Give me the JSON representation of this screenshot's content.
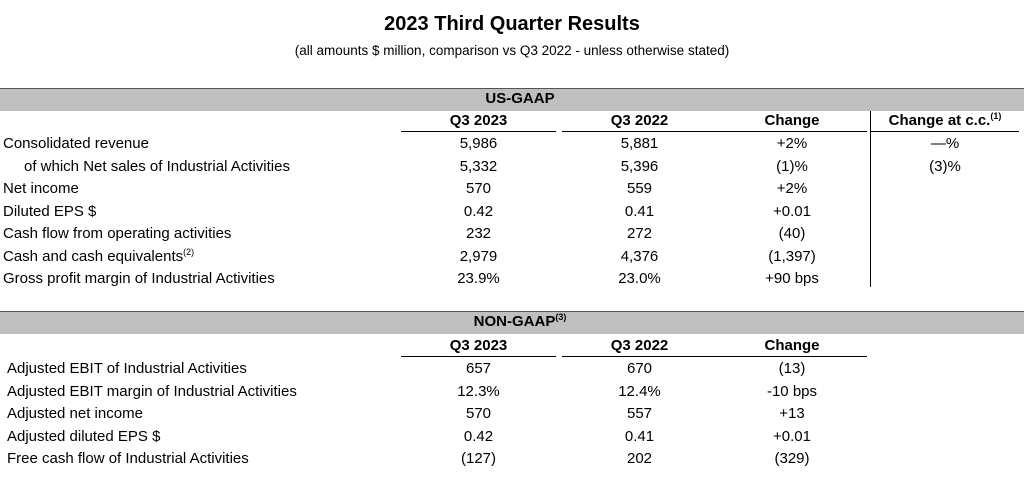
{
  "header": {
    "title": "2023 Third Quarter Results",
    "subtitle": "(all amounts $ million, comparison vs Q3 2022 - unless otherwise stated)"
  },
  "us_gaap": {
    "section_label": "US-GAAP",
    "columns": [
      "Q3 2023",
      "Q3 2022",
      "Change",
      "Change at c.c."
    ],
    "columns_cc_note": "(1)",
    "rows": [
      {
        "label": "Consolidated revenue",
        "note": "",
        "q3_2023": "5,986",
        "q3_2022": "5,881",
        "change": "+2%",
        "change_cc": "—%"
      },
      {
        "label": "of which Net sales of Industrial Activities",
        "note": "",
        "q3_2023": "5,332",
        "q3_2022": "5,396",
        "change": "(1)%",
        "change_cc": "(3)%"
      },
      {
        "label": "Net income",
        "note": "",
        "q3_2023": "570",
        "q3_2022": "559",
        "change": "+2%",
        "change_cc": ""
      },
      {
        "label": "Diluted EPS $",
        "note": "",
        "q3_2023": "0.42",
        "q3_2022": "0.41",
        "change": "+0.01",
        "change_cc": ""
      },
      {
        "label": "Cash flow from operating activities",
        "note": "",
        "q3_2023": "232",
        "q3_2022": "272",
        "change": "(40)",
        "change_cc": ""
      },
      {
        "label": "Cash and cash equivalents",
        "note": "(2)",
        "q3_2023": "2,979",
        "q3_2022": "4,376",
        "change": "(1,397)",
        "change_cc": ""
      },
      {
        "label": "Gross profit margin of Industrial Activities",
        "note": "",
        "q3_2023": "23.9%",
        "q3_2022": "23.0%",
        "change": "+90 bps",
        "change_cc": ""
      }
    ]
  },
  "non_gaap": {
    "section_label": "NON-GAAP",
    "section_note": "(3)",
    "columns": [
      "Q3 2023",
      "Q3 2022",
      "Change"
    ],
    "rows": [
      {
        "label": "Adjusted EBIT of Industrial Activities",
        "q3_2023": "657",
        "q3_2022": "670",
        "change": "(13)"
      },
      {
        "label": "Adjusted EBIT margin of Industrial Activities",
        "q3_2023": "12.3%",
        "q3_2022": "12.4%",
        "change": "-10 bps"
      },
      {
        "label": "Adjusted net income",
        "q3_2023": "570",
        "q3_2022": "557",
        "change": "+13"
      },
      {
        "label": "Adjusted diluted EPS $",
        "q3_2023": "0.42",
        "q3_2022": "0.41",
        "change": "+0.01"
      },
      {
        "label": "Free cash flow of Industrial Activities",
        "q3_2023": "(127)",
        "q3_2022": "202",
        "change": "(329)"
      }
    ]
  }
}
